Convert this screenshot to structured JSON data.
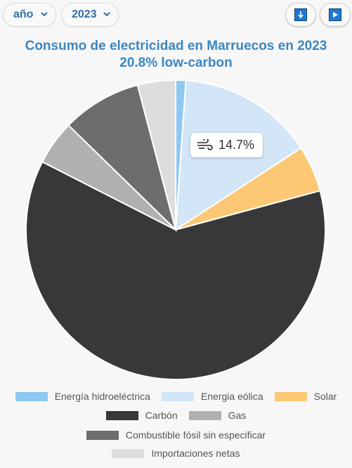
{
  "controls": {
    "period_select": "año",
    "year_select": "2023"
  },
  "title": {
    "line1": "Consumo de electricidad en Marruecos en 2023",
    "line2": "20.8% low-carbon"
  },
  "tooltip": {
    "icon": "wind-icon",
    "value": "14.7%"
  },
  "colors": {
    "hydro": "#8ec8f2",
    "wind": "#d2e6f7",
    "solar": "#fdc874",
    "coal": "#383838",
    "gas": "#b0b0b0",
    "fossil_unspecified": "#6d6d6d",
    "imports": "#dddddd"
  },
  "chart_data": {
    "type": "pie",
    "title": "Consumo de electricidad en Marruecos en 2023",
    "subtitle": "20.8% low-carbon",
    "slices": [
      {
        "label": "Energía hidroeléctrica",
        "value": 1.1,
        "color": "#8ec8f2"
      },
      {
        "label": "Energia eólica",
        "value": 14.7,
        "color": "#d2e6f7"
      },
      {
        "label": "Solar",
        "value": 5.0,
        "color": "#fdc874"
      },
      {
        "label": "Carbón",
        "value": 61.7,
        "color": "#383838"
      },
      {
        "label": "Gas",
        "value": 4.8,
        "color": "#b0b0b0"
      },
      {
        "label": "Combustible fósil sin especificar",
        "value": 8.6,
        "color": "#6d6d6d"
      },
      {
        "label": "Importaciones netas",
        "value": 4.1,
        "color": "#dddddd"
      }
    ],
    "legend_position": "bottom"
  }
}
